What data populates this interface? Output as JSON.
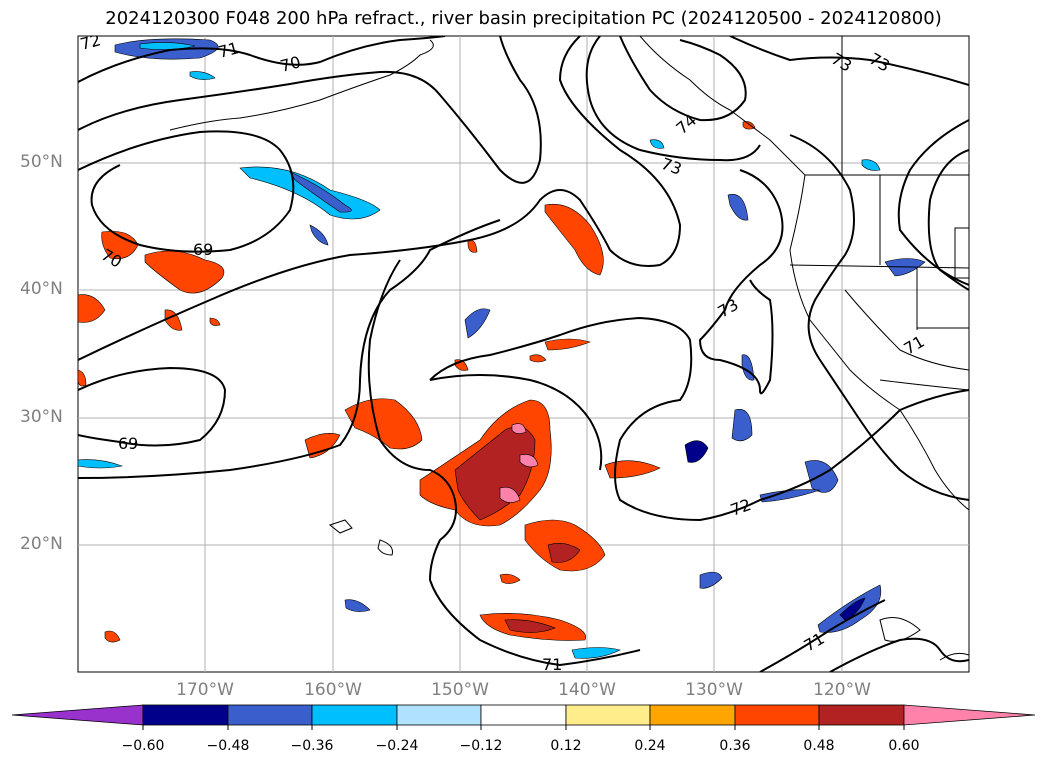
{
  "title": "2024120300 F048 200 hPa refract., river basin precipitation PC (2024120500 - 2024120800)",
  "lat_labels": [
    "50°N",
    "40°N",
    "30°N",
    "20°N"
  ],
  "lon_labels": [
    "170°W",
    "160°W",
    "150°W",
    "140°W",
    "130°W",
    "120°W"
  ],
  "contour_labels": [
    "72",
    "71",
    "70",
    "69",
    "70",
    "69",
    "73",
    "73",
    "74",
    "73",
    "73",
    "72",
    "71",
    "71",
    "71"
  ],
  "colorbar": {
    "ticks": [
      "−0.60",
      "−0.48",
      "−0.36",
      "−0.24",
      "−0.12",
      "0.12",
      "0.24",
      "0.36",
      "0.48",
      "0.60"
    ],
    "colors": [
      "#9932cc",
      "#00008b",
      "#3a5fcd",
      "#00bfff",
      "#b0e2ff",
      "#ffffff",
      "#ffec8b",
      "#ffa500",
      "#ff4500",
      "#b22222",
      "#ff82ab"
    ]
  },
  "map_extent": {
    "lon_min": -180,
    "lon_max": -110,
    "lat_min": 10,
    "lat_max": 60
  }
}
